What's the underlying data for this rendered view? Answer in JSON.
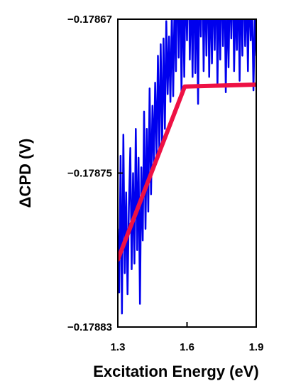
{
  "chart_data": {
    "type": "line",
    "xlabel": "Excitation Energy (eV)",
    "ylabel": "ΔCPD (V)",
    "xlim": [
      1.3,
      1.9
    ],
    "ylim": [
      -0.17883,
      -0.17867
    ],
    "xticks": [
      1.3,
      1.6,
      1.9
    ],
    "xtick_labels": [
      "1.3",
      "1.6",
      "1.9"
    ],
    "yticks": [
      -0.17867,
      -0.17875,
      -0.17883
    ],
    "ytick_labels": [
      "−0.17867",
      "−0.17875",
      "−0.17883"
    ],
    "grid": false,
    "series": [
      {
        "color": "#0000ee",
        "style": "noisy-line",
        "x": [
          1.3,
          1.306,
          1.312,
          1.318,
          1.324,
          1.33,
          1.336,
          1.342,
          1.348,
          1.354,
          1.36,
          1.366,
          1.372,
          1.378,
          1.384,
          1.39,
          1.396,
          1.402,
          1.408,
          1.414,
          1.42,
          1.426,
          1.432,
          1.438,
          1.444,
          1.45,
          1.456,
          1.462,
          1.468,
          1.474,
          1.48,
          1.486,
          1.492,
          1.498,
          1.504,
          1.51,
          1.516,
          1.522,
          1.528,
          1.534,
          1.54,
          1.546,
          1.552,
          1.558,
          1.564,
          1.57,
          1.576,
          1.582,
          1.588,
          1.594,
          1.6,
          1.606,
          1.612,
          1.618,
          1.624,
          1.63,
          1.636,
          1.642,
          1.648,
          1.654,
          1.66,
          1.666,
          1.672,
          1.678,
          1.684,
          1.69,
          1.696,
          1.702,
          1.708,
          1.714,
          1.72,
          1.726,
          1.732,
          1.738,
          1.744,
          1.75,
          1.756,
          1.762,
          1.768,
          1.774,
          1.78,
          1.786,
          1.792,
          1.798,
          1.804,
          1.81,
          1.816,
          1.822,
          1.828,
          1.834,
          1.84,
          1.846,
          1.852,
          1.858,
          1.864,
          1.87,
          1.876,
          1.882,
          1.888,
          1.894,
          1.9
        ],
        "y": [
          -0.178779,
          -0.178812,
          -0.178741,
          -0.178823,
          -0.17873,
          -0.178802,
          -0.17876,
          -0.178813,
          -0.178768,
          -0.178737,
          -0.1788,
          -0.17875,
          -0.178797,
          -0.178727,
          -0.17879,
          -0.178742,
          -0.178818,
          -0.178747,
          -0.178785,
          -0.178718,
          -0.178779,
          -0.178727,
          -0.17877,
          -0.178706,
          -0.178761,
          -0.178715,
          -0.178745,
          -0.178703,
          -0.178741,
          -0.178689,
          -0.178739,
          -0.178683,
          -0.178736,
          -0.17868,
          -0.178727,
          -0.178671,
          -0.178709,
          -0.178679,
          -0.178713,
          -0.178666,
          -0.17871,
          -0.17866,
          -0.178697,
          -0.178632,
          -0.17869,
          -0.17864,
          -0.178708,
          -0.17865,
          -0.1787,
          -0.178645,
          -0.178681,
          -0.178628,
          -0.178691,
          -0.178648,
          -0.1787,
          -0.178637,
          -0.178698,
          -0.17865,
          -0.178714,
          -0.17864,
          -0.178679,
          -0.178629,
          -0.178697,
          -0.178645,
          -0.178689,
          -0.178633,
          -0.1787,
          -0.178651,
          -0.178693,
          -0.178645,
          -0.178686,
          -0.178635,
          -0.178705,
          -0.17865,
          -0.178691,
          -0.17864,
          -0.178684,
          -0.178642,
          -0.178708,
          -0.178657,
          -0.178695,
          -0.178644,
          -0.17868,
          -0.178637,
          -0.178697,
          -0.178658,
          -0.178686,
          -0.178646,
          -0.178702,
          -0.178647,
          -0.178689,
          -0.178638,
          -0.178684,
          -0.178652,
          -0.178697,
          -0.178649,
          -0.178681,
          -0.178659,
          -0.178707,
          -0.178668,
          -0.178689
        ]
      },
      {
        "color": "#ee1144",
        "style": "fit-line",
        "x": [
          1.3,
          1.59,
          1.9
        ],
        "y": [
          -0.178795,
          -0.178705,
          -0.178704
        ]
      }
    ]
  }
}
